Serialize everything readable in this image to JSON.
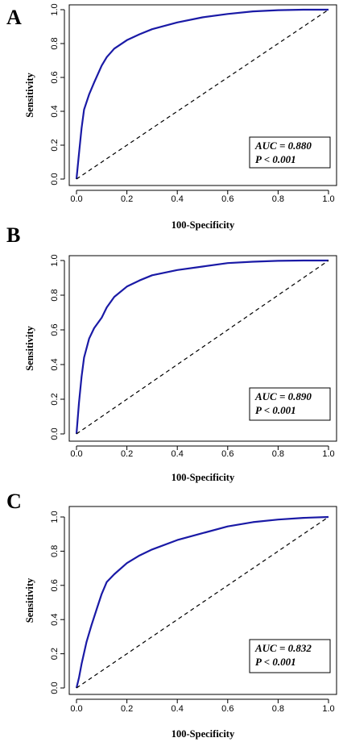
{
  "chart_data": [
    {
      "type": "line",
      "panel_label": "A",
      "xlabel": "100-Specificity",
      "ylabel": "Sensitivity",
      "xlim": [
        0,
        1
      ],
      "ylim": [
        0,
        1
      ],
      "xticks": [
        "0.0",
        "0.2",
        "0.4",
        "0.6",
        "0.8",
        "1.0"
      ],
      "yticks": [
        "0.0",
        "0.2",
        "0.4",
        "0.6",
        "0.8",
        "1.0"
      ],
      "annotation": [
        "AUC = 0.880",
        "P < 0.001"
      ],
      "series": [
        {
          "x": [
            0,
            0.01,
            0.02,
            0.03,
            0.05,
            0.07,
            0.1,
            0.12,
            0.15,
            0.2,
            0.25,
            0.3,
            0.4,
            0.5,
            0.6,
            0.7,
            0.8,
            0.9,
            1.0
          ],
          "y": [
            0,
            0.15,
            0.3,
            0.41,
            0.5,
            0.57,
            0.67,
            0.72,
            0.77,
            0.82,
            0.855,
            0.885,
            0.925,
            0.955,
            0.975,
            0.99,
            0.997,
            1.0,
            1.0
          ],
          "color": "#1a1aa6"
        },
        {
          "x": [
            0,
            1
          ],
          "y": [
            0,
            1
          ],
          "color": "#000000",
          "style": "dashed"
        }
      ]
    },
    {
      "type": "line",
      "panel_label": "B",
      "xlabel": "100-Specificity",
      "ylabel": "Sensitivity",
      "xlim": [
        0,
        1
      ],
      "ylim": [
        0,
        1
      ],
      "xticks": [
        "0.0",
        "0.2",
        "0.4",
        "0.6",
        "0.8",
        "1.0"
      ],
      "yticks": [
        "0.0",
        "0.2",
        "0.4",
        "0.6",
        "0.8",
        "1.0"
      ],
      "annotation": [
        "AUC = 0.890",
        "P < 0.001"
      ],
      "series": [
        {
          "x": [
            0,
            0.01,
            0.02,
            0.03,
            0.05,
            0.07,
            0.1,
            0.12,
            0.15,
            0.2,
            0.25,
            0.3,
            0.4,
            0.5,
            0.6,
            0.7,
            0.8,
            0.9,
            1.0
          ],
          "y": [
            0,
            0.18,
            0.33,
            0.44,
            0.55,
            0.61,
            0.67,
            0.73,
            0.79,
            0.85,
            0.885,
            0.915,
            0.945,
            0.965,
            0.985,
            0.993,
            0.998,
            1.0,
            1.0
          ],
          "color": "#1a1aa6"
        },
        {
          "x": [
            0,
            1
          ],
          "y": [
            0,
            1
          ],
          "color": "#000000",
          "style": "dashed"
        }
      ]
    },
    {
      "type": "line",
      "panel_label": "C",
      "xlabel": "100-Specificity",
      "ylabel": "Sensitivity",
      "xlim": [
        0,
        1
      ],
      "ylim": [
        0,
        1
      ],
      "xticks": [
        "0.0",
        "0.2",
        "0.4",
        "0.6",
        "0.8",
        "1.0"
      ],
      "yticks": [
        "0.0",
        "0.2",
        "0.4",
        "0.6",
        "0.8",
        "1.0"
      ],
      "annotation": [
        "AUC = 0.832",
        "P < 0.001"
      ],
      "series": [
        {
          "x": [
            0,
            0.01,
            0.02,
            0.04,
            0.06,
            0.08,
            0.1,
            0.12,
            0.15,
            0.2,
            0.25,
            0.3,
            0.4,
            0.5,
            0.6,
            0.7,
            0.8,
            0.9,
            1.0
          ],
          "y": [
            0,
            0.06,
            0.14,
            0.27,
            0.37,
            0.46,
            0.55,
            0.62,
            0.665,
            0.73,
            0.775,
            0.81,
            0.865,
            0.905,
            0.945,
            0.97,
            0.985,
            0.995,
            1.0
          ],
          "color": "#1a1aa6"
        },
        {
          "x": [
            0,
            1
          ],
          "y": [
            0,
            1
          ],
          "color": "#000000",
          "style": "dashed"
        }
      ]
    }
  ]
}
